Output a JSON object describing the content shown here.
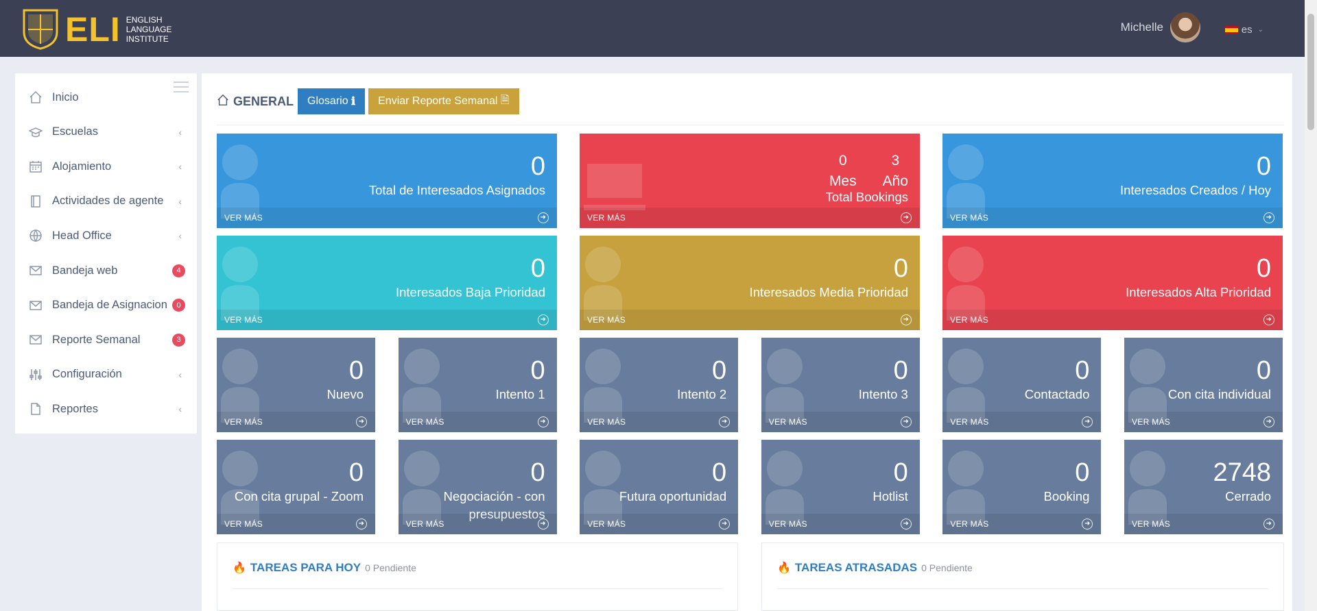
{
  "header": {
    "logo_text": "ELI",
    "logo_sub": [
      "ENGLISH",
      "LANGUAGE",
      "INSTITUTE"
    ],
    "user_name": "Michelle",
    "language": "es"
  },
  "sidebar": {
    "items": [
      {
        "label": "Inicio",
        "icon": "home-icon",
        "arrow": false,
        "badge": null
      },
      {
        "label": "Escuelas",
        "icon": "graduation-cap-icon",
        "arrow": true,
        "badge": null
      },
      {
        "label": "Alojamiento",
        "icon": "calendar-icon",
        "arrow": true,
        "badge": null
      },
      {
        "label": "Actividades de agente",
        "icon": "book-icon",
        "arrow": true,
        "badge": null
      },
      {
        "label": "Head Office",
        "icon": "globe-icon",
        "arrow": true,
        "badge": null
      },
      {
        "label": "Bandeja web",
        "icon": "envelope-icon",
        "arrow": false,
        "badge": "4"
      },
      {
        "label": "Bandeja de Asignacion",
        "icon": "envelope-icon",
        "arrow": false,
        "badge": "0"
      },
      {
        "label": "Reporte Semanal",
        "icon": "envelope-icon",
        "arrow": false,
        "badge": "3"
      },
      {
        "label": "Configuración",
        "icon": "sliders-icon",
        "arrow": true,
        "badge": null
      },
      {
        "label": "Reportes",
        "icon": "file-icon",
        "arrow": true,
        "badge": null
      }
    ]
  },
  "toolbar": {
    "title": "GENERAL",
    "glossary_label": "Glosario",
    "report_label": "Enviar Reporte Semanal"
  },
  "tiles": {
    "ver_mas": "VER MÁS",
    "total_asignados": {
      "value": "0",
      "label": "Total de Interesados Asignados"
    },
    "bookings": {
      "mes_value": "0",
      "mes_label": "Mes",
      "anio_value": "3",
      "anio_label": "Año",
      "label": "Total Bookings"
    },
    "creados_hoy": {
      "value": "0",
      "label": "Interesados Creados / Hoy"
    },
    "baja": {
      "value": "0",
      "label": "Interesados Baja Prioridad"
    },
    "media": {
      "value": "0",
      "label": "Interesados Media Prioridad"
    },
    "alta": {
      "value": "0",
      "label": "Interesados Alta Prioridad"
    },
    "status": [
      {
        "value": "0",
        "label": "Nuevo"
      },
      {
        "value": "0",
        "label": "Intento 1"
      },
      {
        "value": "0",
        "label": "Intento 2"
      },
      {
        "value": "0",
        "label": "Intento 3"
      },
      {
        "value": "0",
        "label": "Contactado"
      },
      {
        "value": "0",
        "label": "Con cita individual"
      },
      {
        "value": "0",
        "label": "Con cita grupal - Zoom"
      },
      {
        "value": "0",
        "label": "Negociación - con presupuestos"
      },
      {
        "value": "0",
        "label": "Futura oportunidad"
      },
      {
        "value": "0",
        "label": "Hotlist"
      },
      {
        "value": "0",
        "label": "Booking"
      },
      {
        "value": "2748",
        "label": "Cerrado"
      }
    ]
  },
  "tasks": {
    "today_title": "TAREAS PARA HOY",
    "today_pending": "0 Pendiente",
    "late_title": "TAREAS ATRASADAS",
    "late_pending": "0 Pendiente"
  },
  "colors": {
    "header": "#3c4055",
    "blue": "#3897dc",
    "red": "#e8434f",
    "cyan": "#33c3d3",
    "gold": "#c6a13e",
    "slate": "#687d9d",
    "accent_logo": "#f4c22b"
  }
}
